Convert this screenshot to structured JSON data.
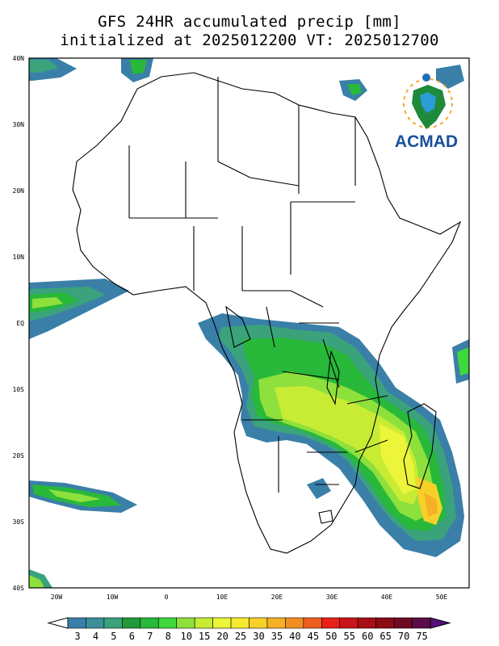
{
  "title": {
    "line1": "GFS 24HR accumulated precip [mm]",
    "line2": "initialized at 2025012200 VT: 2025012700"
  },
  "logo": {
    "text": "ACMAD",
    "icon": "africa-globe-logo"
  },
  "axes": {
    "lon_labels": [
      "20W",
      "10W",
      "0",
      "10E",
      "20E",
      "30E",
      "40E",
      "50E"
    ],
    "lat_labels": [
      "40N",
      "30N",
      "20N",
      "10N",
      "EQ",
      "10S",
      "20S",
      "30S",
      "40S"
    ]
  },
  "colorbar": {
    "levels": [
      "3",
      "4",
      "5",
      "6",
      "7",
      "8",
      "10",
      "15",
      "20",
      "25",
      "30",
      "35",
      "40",
      "45",
      "50",
      "55",
      "60",
      "65",
      "70",
      "75"
    ],
    "colors": [
      "#ffffff",
      "#3a7fa8",
      "#3c8f9a",
      "#3aa37c",
      "#1f9a38",
      "#28b83a",
      "#3ed83e",
      "#8ee03c",
      "#c8ec34",
      "#ecf53a",
      "#f7ea2e",
      "#f7d12a",
      "#f5b026",
      "#f28d22",
      "#ee5e1c",
      "#e8201a",
      "#c8141a",
      "#a80e16",
      "#8a0c14",
      "#6e0a24",
      "#5a0e48"
    ],
    "colors_note": "",
    "end_left": "#ffffff",
    "end_right": "#56107a"
  },
  "colors": {
    "land_outline": "#000000",
    "frame": "#000000",
    "precip_low": "#3a7fa8",
    "precip_mid": "#3ed83e",
    "precip_high": "#f7d12a"
  }
}
